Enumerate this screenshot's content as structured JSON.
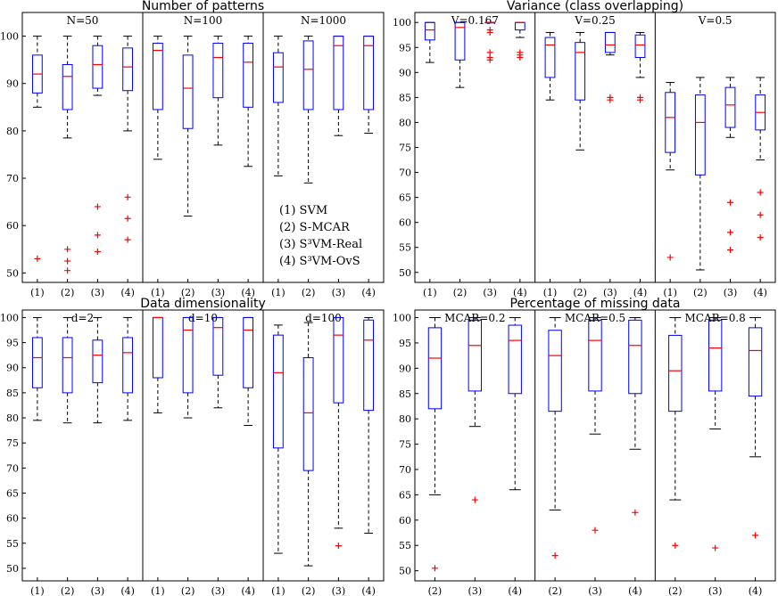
{
  "colors": {
    "box": "#0000ff",
    "median": "#ff0000",
    "outlier": "#ff0000",
    "whisker": "#000000"
  },
  "legend": [
    "(1) SVM",
    "(2) S-MCAR",
    "(3) S³VM-Real",
    "(4) S³VM-OvS"
  ],
  "chart_data": [
    {
      "type": "boxplot",
      "title": "Number of patterns",
      "ylim": [
        48,
        105
      ],
      "yticks": [
        50,
        60,
        70,
        80,
        90,
        100
      ],
      "subplots": [
        {
          "title": "N=50",
          "categories": [
            "(1)",
            "(2)",
            "(3)",
            "(4)"
          ],
          "boxes": [
            {
              "min": 85,
              "q1": 88,
              "median": 92,
              "q3": 96,
              "max": 100,
              "outliers": [
                53
              ]
            },
            {
              "min": 78.5,
              "q1": 84.5,
              "median": 91.5,
              "q3": 94,
              "max": 100,
              "outliers": [
                55,
                52.5,
                50.5
              ]
            },
            {
              "min": 87.5,
              "q1": 89,
              "median": 94,
              "q3": 98,
              "max": 100,
              "outliers": [
                64,
                58,
                54.5
              ]
            },
            {
              "min": 80,
              "q1": 88.5,
              "median": 93.5,
              "q3": 97.5,
              "max": 100,
              "outliers": [
                66,
                61.5,
                57
              ]
            }
          ]
        },
        {
          "title": "N=100",
          "categories": [
            "(1)",
            "(2)",
            "(3)",
            "(4)"
          ],
          "boxes": [
            {
              "min": 74,
              "q1": 84.5,
              "median": 97,
              "q3": 98.5,
              "max": 100,
              "outliers": []
            },
            {
              "min": 62,
              "q1": 80.5,
              "median": 89,
              "q3": 96,
              "max": 100,
              "outliers": []
            },
            {
              "min": 77,
              "q1": 87,
              "median": 95.5,
              "q3": 98.5,
              "max": 100,
              "outliers": []
            },
            {
              "min": 72.5,
              "q1": 85,
              "median": 94.5,
              "q3": 98.5,
              "max": 100,
              "outliers": []
            }
          ]
        },
        {
          "title": "N=1000",
          "categories": [
            "(1)",
            "(2)",
            "(3)",
            "(4)"
          ],
          "boxes": [
            {
              "min": 70.5,
              "q1": 86,
              "median": 93.5,
              "q3": 96.5,
              "max": 100,
              "outliers": []
            },
            {
              "min": 69,
              "q1": 84.5,
              "median": 93,
              "q3": 99,
              "max": 100,
              "outliers": []
            },
            {
              "min": 79,
              "q1": 84.5,
              "median": 98,
              "q3": 100,
              "max": 100,
              "outliers": []
            },
            {
              "min": 79.5,
              "q1": 84.5,
              "median": 98,
              "q3": 100,
              "max": 100,
              "outliers": []
            }
          ]
        }
      ]
    },
    {
      "type": "boxplot",
      "title": "Variance (class overlapping)",
      "ylim": [
        48,
        102
      ],
      "yticks": [
        50,
        55,
        60,
        65,
        70,
        75,
        80,
        85,
        90,
        95,
        100
      ],
      "subplots": [
        {
          "title": "V=0.167",
          "categories": [
            "(1)",
            "(2)",
            "(3)",
            "(4)"
          ],
          "boxes": [
            {
              "min": 92,
              "q1": 96.5,
              "median": 98.5,
              "q3": 100,
              "max": 100,
              "outliers": []
            },
            {
              "min": 87,
              "q1": 92.5,
              "median": 99,
              "q3": 100,
              "max": 100,
              "outliers": []
            },
            {
              "min": 100,
              "q1": 100,
              "median": 100,
              "q3": 100,
              "max": 100,
              "outliers": [
                98.5,
                98,
                94,
                93,
                92.5
              ]
            },
            {
              "min": 97,
              "q1": 98.5,
              "median": 100,
              "q3": 100,
              "max": 100,
              "outliers": [
                94,
                93.5,
                93
              ]
            }
          ]
        },
        {
          "title": "V=0.25",
          "categories": [
            "(1)",
            "(2)",
            "(3)",
            "(4)"
          ],
          "boxes": [
            {
              "min": 84.5,
              "q1": 89,
              "median": 95.5,
              "q3": 97,
              "max": 98,
              "outliers": []
            },
            {
              "min": 74.5,
              "q1": 84.5,
              "median": 94,
              "q3": 96,
              "max": 98,
              "outliers": []
            },
            {
              "min": 93.5,
              "q1": 94,
              "median": 95.5,
              "q3": 98,
              "max": 98,
              "outliers": [
                85,
                84.5
              ]
            },
            {
              "min": 89,
              "q1": 93,
              "median": 95.5,
              "q3": 97.5,
              "max": 98,
              "outliers": [
                85,
                84.5
              ]
            }
          ]
        },
        {
          "title": "V=0.5",
          "categories": [
            "(1)",
            "(2)",
            "(3)",
            "(4)"
          ],
          "boxes": [
            {
              "min": 70.5,
              "q1": 74,
              "median": 81,
              "q3": 86,
              "max": 88,
              "outliers": [
                53
              ]
            },
            {
              "min": 50.5,
              "q1": 69.5,
              "median": 80,
              "q3": 85.5,
              "max": 89,
              "outliers": []
            },
            {
              "min": 77,
              "q1": 79,
              "median": 83.5,
              "q3": 87,
              "max": 89,
              "outliers": [
                64,
                58,
                54.5
              ]
            },
            {
              "min": 72.5,
              "q1": 78.5,
              "median": 82,
              "q3": 85.5,
              "max": 89,
              "outliers": [
                66,
                61.5,
                57
              ]
            }
          ]
        }
      ]
    },
    {
      "type": "boxplot",
      "title": "Data dimensionality",
      "ylim": [
        47.5,
        101.5
      ],
      "yticks": [
        50,
        55,
        60,
        65,
        70,
        75,
        80,
        85,
        90,
        95,
        100
      ],
      "subplots": [
        {
          "title": "d=2",
          "categories": [
            "(1)",
            "(2)",
            "(3)",
            "(4)"
          ],
          "boxes": [
            {
              "min": 79.5,
              "q1": 86,
              "median": 92,
              "q3": 96,
              "max": 100,
              "outliers": []
            },
            {
              "min": 79,
              "q1": 85,
              "median": 92,
              "q3": 96,
              "max": 100,
              "outliers": []
            },
            {
              "min": 79,
              "q1": 87,
              "median": 92.5,
              "q3": 95.5,
              "max": 100,
              "outliers": []
            },
            {
              "min": 79.5,
              "q1": 85,
              "median": 93,
              "q3": 96,
              "max": 100,
              "outliers": []
            }
          ]
        },
        {
          "title": "d=10",
          "categories": [
            "(1)",
            "(2)",
            "(3)",
            "(4)"
          ],
          "boxes": [
            {
              "min": 81,
              "q1": 88,
              "median": 100,
              "q3": 100,
              "max": 100,
              "outliers": []
            },
            {
              "min": 80,
              "q1": 85,
              "median": 97.5,
              "q3": 100,
              "max": 100,
              "outliers": []
            },
            {
              "min": 82,
              "q1": 88.5,
              "median": 98,
              "q3": 100,
              "max": 100,
              "outliers": []
            },
            {
              "min": 78.5,
              "q1": 86,
              "median": 97.5,
              "q3": 100,
              "max": 100,
              "outliers": []
            }
          ]
        },
        {
          "title": "d=100",
          "categories": [
            "(1)",
            "(2)",
            "(3)",
            "(4)"
          ],
          "boxes": [
            {
              "min": 53,
              "q1": 74,
              "median": 89,
              "q3": 96.5,
              "max": 98.5,
              "outliers": []
            },
            {
              "min": 50.5,
              "q1": 69.5,
              "median": 81,
              "q3": 92,
              "max": 99,
              "outliers": []
            },
            {
              "min": 58,
              "q1": 83,
              "median": 96.5,
              "q3": 100,
              "max": 100,
              "outliers": [
                54.5
              ]
            },
            {
              "min": 57,
              "q1": 81.5,
              "median": 95.5,
              "q3": 99.5,
              "max": 100,
              "outliers": []
            }
          ]
        }
      ]
    },
    {
      "type": "boxplot",
      "title": "Percentage of missing data",
      "ylim": [
        48,
        101.5
      ],
      "yticks": [
        50,
        55,
        60,
        65,
        70,
        75,
        80,
        85,
        90,
        95,
        100
      ],
      "subplots": [
        {
          "title": "MCAR=0.2",
          "categories": [
            "(2)",
            "(3)",
            "(4)"
          ],
          "boxes": [
            {
              "min": 65,
              "q1": 82,
              "median": 92,
              "q3": 98,
              "max": 100,
              "outliers": [
                50.5
              ]
            },
            {
              "min": 78.5,
              "q1": 85.5,
              "median": 94.5,
              "q3": 99.5,
              "max": 100,
              "outliers": [
                64
              ]
            },
            {
              "min": 66,
              "q1": 85,
              "median": 95.5,
              "q3": 98.5,
              "max": 100,
              "outliers": []
            }
          ]
        },
        {
          "title": "MCAR=0.5",
          "categories": [
            "(2)",
            "(3)",
            "(4)"
          ],
          "boxes": [
            {
              "min": 62,
              "q1": 81.5,
              "median": 92.5,
              "q3": 97.5,
              "max": 100,
              "outliers": [
                53
              ]
            },
            {
              "min": 77,
              "q1": 85.5,
              "median": 95.5,
              "q3": 99.5,
              "max": 100,
              "outliers": [
                58
              ]
            },
            {
              "min": 74,
              "q1": 85,
              "median": 94.5,
              "q3": 99.5,
              "max": 100,
              "outliers": [
                61.5
              ]
            }
          ]
        },
        {
          "title": "MCAR=0.8",
          "categories": [
            "(2)",
            "(3)",
            "(4)"
          ],
          "boxes": [
            {
              "min": 64,
              "q1": 81.5,
              "median": 89.5,
              "q3": 96.5,
              "max": 100,
              "outliers": [
                55
              ]
            },
            {
              "min": 78,
              "q1": 85.5,
              "median": 94,
              "q3": 99.5,
              "max": 100,
              "outliers": [
                54.5
              ]
            },
            {
              "min": 72.5,
              "q1": 84.5,
              "median": 93.5,
              "q3": 98,
              "max": 100,
              "outliers": [
                57
              ]
            }
          ]
        }
      ]
    }
  ]
}
